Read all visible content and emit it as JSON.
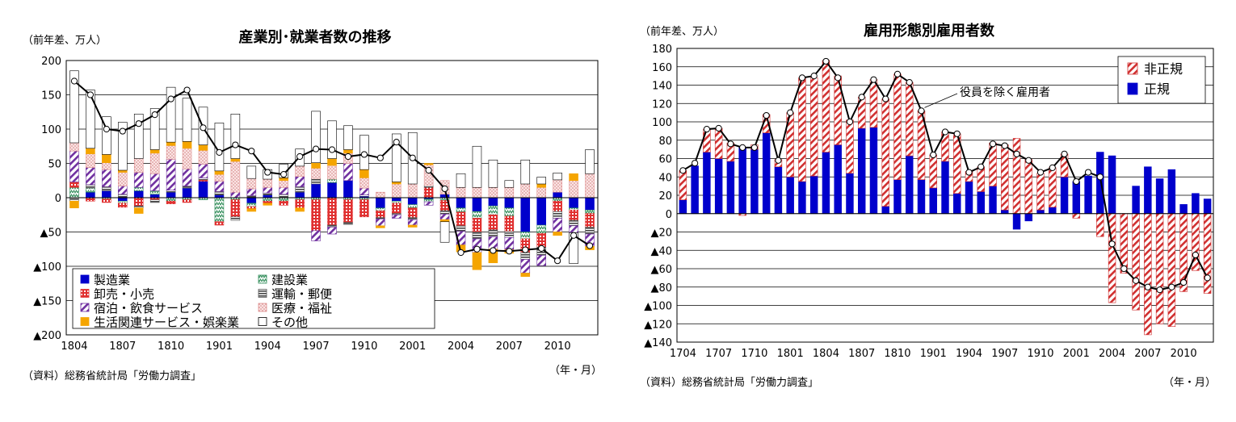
{
  "chart_data": [
    {
      "type": "bar",
      "title": "産業別･就業者数の推移",
      "unit_label": "（前年差、万人）",
      "xlabel": "（年・月）",
      "source": "（資料）総務省統計局「労働力調査」",
      "ylim": [
        -200,
        200
      ],
      "yticks": [
        {
          "v": 200,
          "label": "200"
        },
        {
          "v": 150,
          "label": "150"
        },
        {
          "v": 100,
          "label": "100"
        },
        {
          "v": 50,
          "label": "50"
        },
        {
          "v": 0,
          "label": "0"
        },
        {
          "v": -50,
          "label": "▲50"
        },
        {
          "v": -100,
          "label": "▲100"
        },
        {
          "v": -150,
          "label": "▲150"
        },
        {
          "v": -200,
          "label": "▲200"
        }
      ],
      "categories": [
        "1804",
        "1805",
        "1806",
        "1807",
        "1808",
        "1809",
        "1810",
        "1811",
        "1812",
        "1901",
        "1902",
        "1903",
        "1904",
        "1905",
        "1906",
        "1907",
        "1908",
        "1909",
        "1910",
        "1911",
        "1912",
        "2001",
        "2002",
        "2003",
        "2004",
        "2005",
        "2006",
        "2007",
        "2008",
        "2009",
        "2010",
        "2011",
        "2012"
      ],
      "xtick_labels": [
        "1804",
        "1807",
        "1810",
        "1901",
        "1904",
        "1907",
        "1910",
        "2001",
        "2004",
        "2007",
        "2010"
      ],
      "xtick_index": [
        0,
        3,
        6,
        9,
        12,
        15,
        18,
        21,
        24,
        27,
        30
      ],
      "series": [
        {
          "name": "製造業",
          "color": "#0000cc",
          "pattern": "solid",
          "values": [
            0,
            8,
            10,
            -5,
            10,
            5,
            8,
            14,
            24,
            4,
            0,
            -8,
            4,
            0,
            8,
            20,
            22,
            25,
            2,
            -15,
            -5,
            -10,
            -2,
            5,
            -15,
            -20,
            -12,
            -15,
            -50,
            -40,
            8,
            -15,
            -18
          ]
        },
        {
          "name": "建設業",
          "color": "#2e8b57",
          "pattern": "zig",
          "values": [
            15,
            6,
            -2,
            -3,
            5,
            5,
            -5,
            -3,
            -3,
            -35,
            -3,
            -5,
            -5,
            -5,
            -3,
            -3,
            5,
            -3,
            -3,
            -4,
            -3,
            -5,
            -4,
            -4,
            -6,
            -10,
            -13,
            -12,
            -10,
            -12,
            -5,
            -3,
            -5
          ]
        },
        {
          "name": "卸売・小売",
          "color": "#e03030",
          "pattern": "grid",
          "values": [
            8,
            -5,
            -5,
            -6,
            -12,
            -3,
            -4,
            -4,
            2,
            -5,
            -25,
            -3,
            -3,
            -6,
            -12,
            -45,
            -40,
            -33,
            -25,
            -10,
            -15,
            -14,
            15,
            -15,
            -20,
            -20,
            -22,
            -22,
            -20,
            -20,
            -15,
            -15,
            -20
          ]
        },
        {
          "name": "運輸・郵便",
          "color": "#555555",
          "pattern": "hlines",
          "values": [
            -5,
            5,
            6,
            5,
            -3,
            -4,
            3,
            3,
            3,
            5,
            -5,
            3,
            3,
            5,
            8,
            8,
            -3,
            -3,
            2,
            -2,
            -2,
            -3,
            3,
            -5,
            -8,
            -10,
            -10,
            -9,
            -10,
            -12,
            -10,
            -8,
            -10
          ]
        },
        {
          "name": "宿泊・飲食サービス",
          "color": "#7030a0",
          "pattern": "diag",
          "values": [
            45,
            25,
            25,
            12,
            22,
            25,
            45,
            25,
            20,
            15,
            8,
            10,
            8,
            10,
            15,
            -15,
            -10,
            25,
            10,
            -10,
            -5,
            -8,
            -5,
            -8,
            -20,
            -20,
            -18,
            -18,
            -20,
            -15,
            -20,
            -10,
            -18
          ]
        },
        {
          "name": "医療・福祉",
          "color": "#e09090",
          "pattern": "dots",
          "values": [
            12,
            20,
            10,
            20,
            20,
            30,
            20,
            30,
            20,
            10,
            45,
            15,
            12,
            10,
            15,
            15,
            20,
            15,
            15,
            8,
            20,
            20,
            30,
            20,
            15,
            15,
            15,
            15,
            20,
            15,
            18,
            25,
            35
          ]
        },
        {
          "name": "生活関連サービス・娯楽業",
          "color": "#f5a500",
          "pattern": "solid",
          "values": [
            -10,
            8,
            12,
            3,
            -8,
            5,
            5,
            10,
            8,
            5,
            4,
            -4,
            -3,
            4,
            -5,
            8,
            10,
            5,
            12,
            -3,
            3,
            -3,
            2,
            -3,
            -10,
            -25,
            -20,
            -5,
            -5,
            5,
            -5,
            10,
            -5
          ]
        },
        {
          "name": "その他",
          "color": "#ffffff",
          "pattern": "outline",
          "values": [
            105,
            85,
            55,
            70,
            65,
            60,
            80,
            63,
            55,
            70,
            65,
            18,
            14,
            20,
            25,
            75,
            55,
            35,
            50,
            0,
            70,
            75,
            0,
            -30,
            20,
            60,
            40,
            10,
            35,
            10,
            10,
            -45,
            35
          ]
        }
      ],
      "total_line": {
        "name": "合計",
        "values": [
          170,
          150,
          100,
          97,
          108,
          121,
          144,
          157,
          102,
          66,
          77,
          68,
          37,
          34,
          60,
          71,
          70,
          60,
          63,
          58,
          81,
          58,
          40,
          13,
          -80,
          -75,
          -77,
          -78,
          -76,
          -74,
          -92,
          -55,
          -70
        ]
      },
      "legend": {
        "position": "bottom-left",
        "columns": 2
      }
    },
    {
      "type": "bar",
      "title": "雇用形態別雇用者数",
      "unit_label": "（前年差、万人）",
      "xlabel": "（年・月）",
      "source": "（資料）総務省統計局「労働力調査」",
      "ylim": [
        -140,
        180
      ],
      "yticks": [
        {
          "v": 180,
          "label": "180"
        },
        {
          "v": 160,
          "label": "160"
        },
        {
          "v": 140,
          "label": "140"
        },
        {
          "v": 120,
          "label": "120"
        },
        {
          "v": 100,
          "label": "100"
        },
        {
          "v": 80,
          "label": "80"
        },
        {
          "v": 60,
          "label": "60"
        },
        {
          "v": 40,
          "label": "40"
        },
        {
          "v": 20,
          "label": "20"
        },
        {
          "v": 0,
          "label": "0"
        },
        {
          "v": -20,
          "label": "▲20"
        },
        {
          "v": -40,
          "label": "▲40"
        },
        {
          "v": -60,
          "label": "▲60"
        },
        {
          "v": -80,
          "label": "▲80"
        },
        {
          "v": -100,
          "label": "▲100"
        },
        {
          "v": -120,
          "label": "▲120"
        },
        {
          "v": -140,
          "label": "▲140"
        }
      ],
      "categories": [
        "1704",
        "1705",
        "1706",
        "1707",
        "1708",
        "1709",
        "1710",
        "1711",
        "1712",
        "1801",
        "1802",
        "1803",
        "1804",
        "1805",
        "1806",
        "1807",
        "1808",
        "1809",
        "1810",
        "1811",
        "1812",
        "1901",
        "1902",
        "1903",
        "1904",
        "1905",
        "1906",
        "1907",
        "1908",
        "1909",
        "1910",
        "1911",
        "1912",
        "2001",
        "2002",
        "2003",
        "2004",
        "2005",
        "2006",
        "2007",
        "2008",
        "2009",
        "2010",
        "2011",
        "2012"
      ],
      "xtick_labels": [
        "1704",
        "1707",
        "1710",
        "1801",
        "1804",
        "1807",
        "1810",
        "1901",
        "1904",
        "1907",
        "1910",
        "2001",
        "2004",
        "2007",
        "2010"
      ],
      "xtick_index": [
        0,
        3,
        6,
        9,
        12,
        15,
        18,
        21,
        24,
        27,
        30,
        33,
        36,
        39,
        42
      ],
      "series": [
        {
          "name": "正規",
          "color": "#0000cc",
          "pattern": "solid",
          "values": [
            15,
            52,
            67,
            60,
            57,
            72,
            70,
            88,
            51,
            40,
            35,
            41,
            67,
            75,
            44,
            93,
            94,
            8,
            37,
            63,
            37,
            28,
            57,
            22,
            35,
            24,
            30,
            4,
            -17,
            -8,
            4,
            7,
            40,
            35,
            41,
            67,
            63,
            0,
            30,
            51,
            38,
            48,
            10,
            22,
            16
          ]
        },
        {
          "name": "非正規",
          "color": "#d03030",
          "pattern": "diag",
          "values": [
            32,
            0,
            25,
            33,
            20,
            -2,
            5,
            20,
            8,
            70,
            113,
            107,
            100,
            75,
            58,
            34,
            52,
            117,
            115,
            80,
            75,
            36,
            32,
            65,
            11,
            27,
            47,
            71,
            82,
            59,
            40,
            43,
            25,
            -5,
            0,
            -25,
            -97,
            -65,
            -105,
            -132,
            -120,
            -123,
            -85,
            -62,
            -87
          ]
        }
      ],
      "total_line": {
        "name": "役員を除く雇用者",
        "values": [
          47,
          55,
          92,
          93,
          76,
          72,
          72,
          107,
          58,
          110,
          148,
          150,
          166,
          148,
          100,
          127,
          146,
          125,
          152,
          143,
          112,
          64,
          89,
          87,
          45,
          51,
          76,
          74,
          65,
          58,
          45,
          50,
          65,
          35,
          45,
          40,
          -33,
          -60,
          -73,
          -80,
          -83,
          -80,
          -75,
          -45,
          -70
        ]
      },
      "annotation": "役員を除く雇用者",
      "legend": {
        "position": "top-right",
        "columns": 1
      }
    }
  ]
}
